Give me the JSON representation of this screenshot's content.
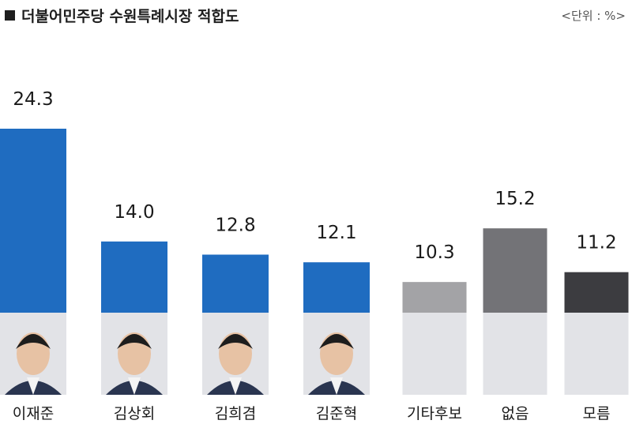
{
  "header": {
    "title": "더불어민주당 수원특례시장 적합도",
    "unit": "<단위 : %>"
  },
  "chart_data": {
    "type": "bar",
    "title": "더불어민주당 수원특례시장 적합도",
    "unit": "%",
    "categories": [
      "이재준",
      "김상회",
      "김희겸",
      "김준혁",
      "기타후보",
      "없음",
      "모름"
    ],
    "values": [
      24.3,
      14.0,
      12.8,
      12.1,
      10.3,
      15.2,
      11.2
    ],
    "value_labels": [
      "24.3",
      "14.0",
      "12.8",
      "12.1",
      "10.3",
      "15.2",
      "11.2"
    ],
    "bar_colors": [
      "#1f6cc0",
      "#1f6cc0",
      "#1f6cc0",
      "#1f6cc0",
      "#a3a3a6",
      "#737377",
      "#3c3c40"
    ],
    "photo_placeholder_color": "#e2e3e7",
    "has_photo": [
      true,
      true,
      true,
      true,
      false,
      false,
      false
    ],
    "ylim": [
      0,
      30
    ],
    "grid": false,
    "legend": "none"
  }
}
